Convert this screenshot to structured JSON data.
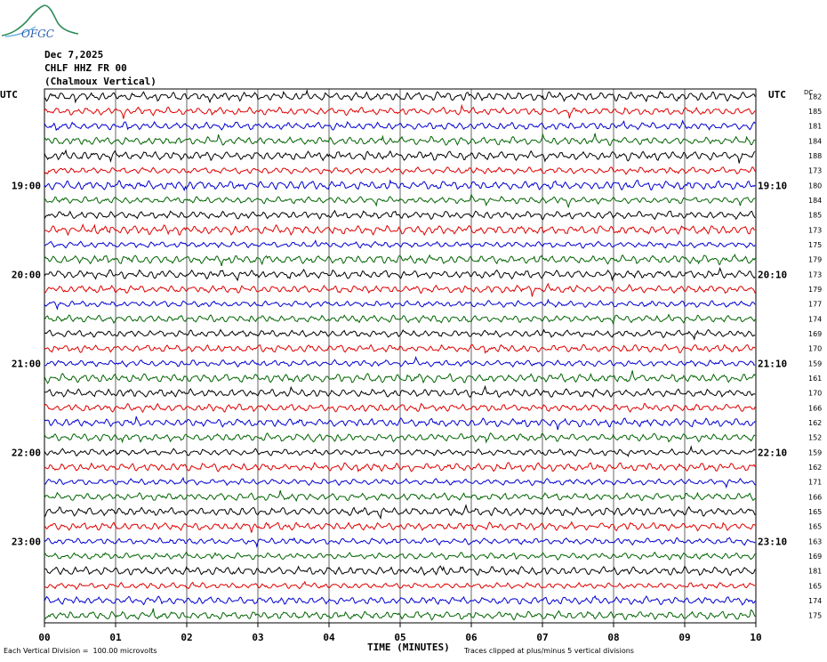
{
  "header": {
    "date": "Dec 7,2025",
    "station": "CHLF HHZ FR 00",
    "location": "(Chalmoux Vertical)",
    "logo_text": "OFGC"
  },
  "axes": {
    "left_label": "UTC",
    "right_label": "UTC",
    "dc_label": "DC",
    "x_title": "TIME (MINUTES)"
  },
  "footer": {
    "scale_note": "Each Vertical Division =  100.00 microvolts",
    "clip_note": "Traces clipped at plus/minus 5 vertical divisions"
  },
  "chart_data": {
    "type": "helicorder",
    "title": "",
    "xlabel": "TIME (MINUTES)",
    "ylabel": "UTC",
    "x_ticks": [
      "00",
      "01",
      "02",
      "03",
      "04",
      "05",
      "06",
      "07",
      "08",
      "09",
      "10"
    ],
    "xlim": [
      0,
      10
    ],
    "minutes_per_line": 10,
    "line_colors": [
      "#000000",
      "#e00000",
      "#0000d0",
      "#006400"
    ],
    "left_time_labels": [
      {
        "line": 6,
        "text": "19:00"
      },
      {
        "line": 12,
        "text": "20:00"
      },
      {
        "line": 18,
        "text": "21:00"
      },
      {
        "line": 24,
        "text": "22:00"
      },
      {
        "line": 30,
        "text": "23:00"
      }
    ],
    "right_time_labels": [
      {
        "line": 6,
        "text": "19:10"
      },
      {
        "line": 12,
        "text": "20:10"
      },
      {
        "line": 18,
        "text": "21:10"
      },
      {
        "line": 24,
        "text": "22:10"
      },
      {
        "line": 30,
        "text": "23:10"
      }
    ],
    "dc_offsets": [
      182,
      185,
      181,
      184,
      188,
      173,
      180,
      184,
      185,
      173,
      175,
      179,
      173,
      179,
      177,
      174,
      169,
      170,
      159,
      161,
      170,
      166,
      162,
      152,
      159,
      162,
      171,
      166,
      165,
      165,
      163,
      169,
      181,
      165,
      174,
      175
    ],
    "grid": true
  }
}
